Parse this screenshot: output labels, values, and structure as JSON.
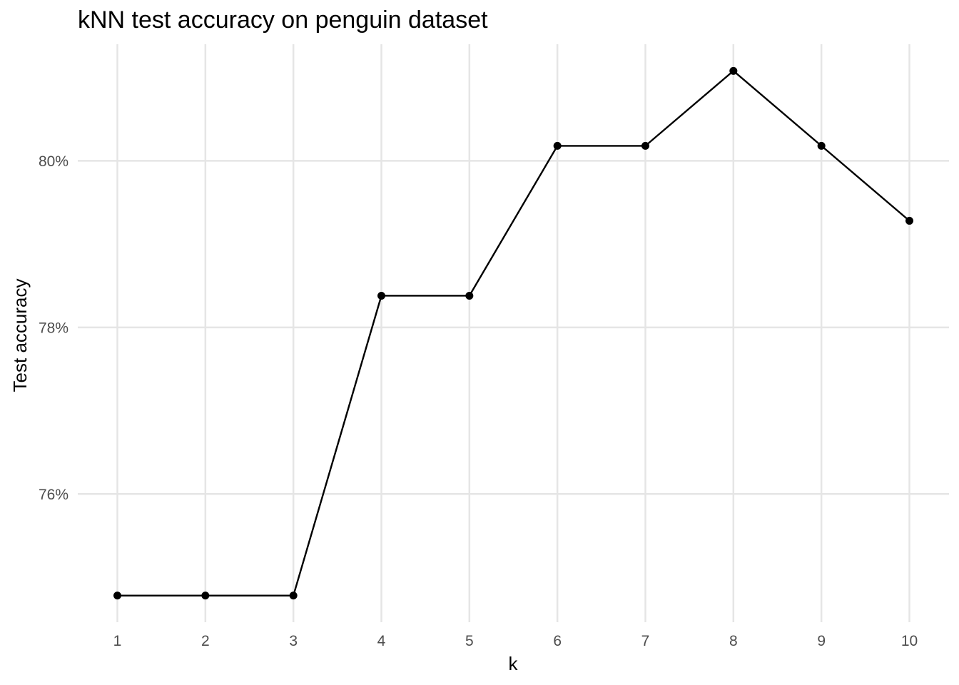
{
  "chart_data": {
    "type": "line",
    "title": "kNN test accuracy on penguin dataset",
    "xlabel": "k",
    "ylabel": "Test accuracy",
    "x": [
      1,
      2,
      3,
      4,
      5,
      6,
      7,
      8,
      9,
      10
    ],
    "series": [
      {
        "values": [
          74.78,
          74.78,
          74.78,
          78.38,
          78.38,
          80.18,
          80.18,
          81.08,
          80.18,
          79.28
        ]
      }
    ],
    "xticks": [
      1,
      2,
      3,
      4,
      5,
      6,
      7,
      8,
      9,
      10
    ],
    "yticks": [
      76,
      78,
      80
    ],
    "ytick_labels": [
      "76%",
      "78%",
      "80%"
    ],
    "xlim": [
      0.55,
      10.45
    ],
    "ylim": [
      74.46,
      81.4
    ],
    "grid": true,
    "line_color": "#000000",
    "grid_color": "#e5e5e5"
  }
}
